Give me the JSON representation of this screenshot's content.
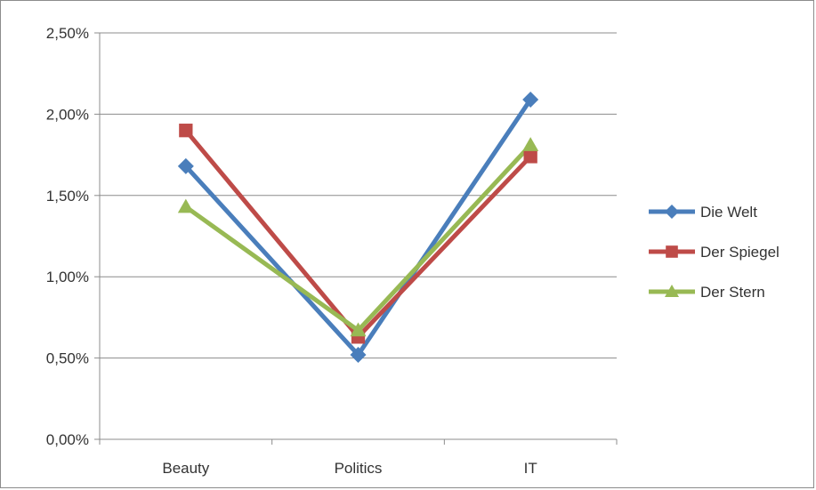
{
  "chart_data": {
    "type": "line",
    "title": "",
    "xlabel": "",
    "ylabel": "",
    "categories": [
      "Beauty",
      "Politics",
      "IT"
    ],
    "ylim": [
      0,
      0.025
    ],
    "yticks": [
      0,
      0.005,
      0.01,
      0.015,
      0.02,
      0.025
    ],
    "ytick_labels": [
      "0,00%",
      "0,50%",
      "1,00%",
      "1,50%",
      "2,00%",
      "2,50%"
    ],
    "grid": true,
    "legend_position": "right",
    "series": [
      {
        "name": "Die Welt",
        "values": [
          0.0168,
          0.0052,
          0.0209
        ],
        "color": "#4a7ebb",
        "marker": "diamond"
      },
      {
        "name": "Der Spiegel",
        "values": [
          0.019,
          0.0063,
          0.0174
        ],
        "color": "#be4b48",
        "marker": "square"
      },
      {
        "name": "Der Stern",
        "values": [
          0.0143,
          0.0067,
          0.0181
        ],
        "color": "#98b954",
        "marker": "triangle"
      }
    ]
  }
}
